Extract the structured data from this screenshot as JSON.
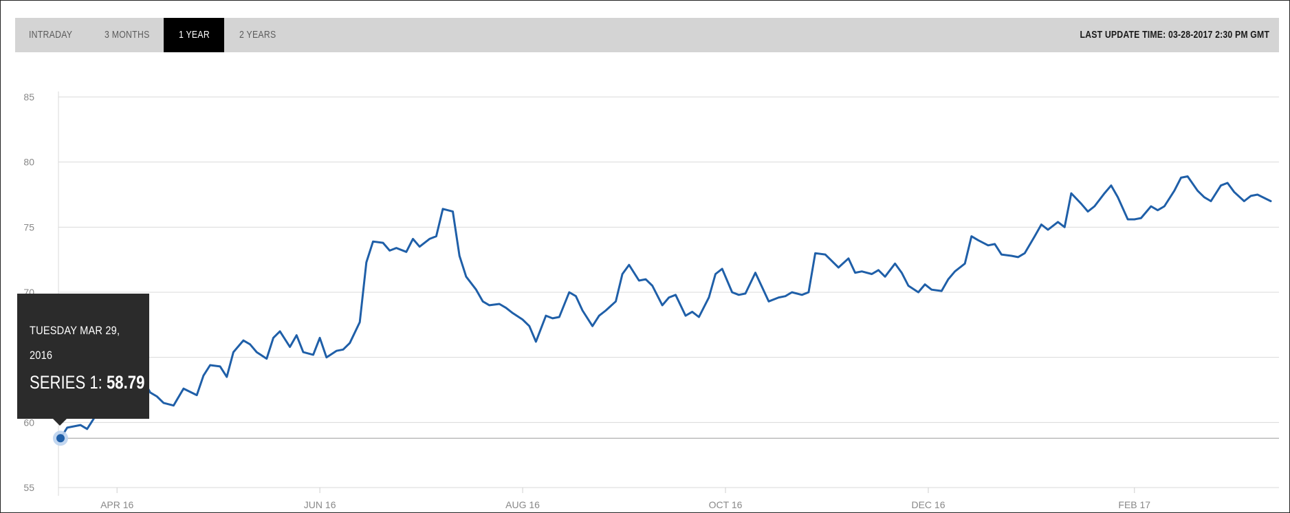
{
  "range_tabs": [
    {
      "label": "INTRADAY",
      "active": false
    },
    {
      "label": "3 MONTHS",
      "active": false
    },
    {
      "label": "1 YEAR",
      "active": true
    },
    {
      "label": "2 YEARS",
      "active": false
    }
  ],
  "last_update": "LAST UPDATE TIME: 03-28-2017 2:30 PM GMT",
  "tooltip": {
    "date_line1": "TUESDAY MAR 29,",
    "date_line2": "2016",
    "series_label": "SERIES 1:",
    "series_value": "58.79"
  },
  "colors": {
    "line": "#1f5fa8",
    "grid": "#d9d9d9",
    "tab_bar": "#d4d4d4",
    "tooltip_bg": "#2b2b2b",
    "marker_halo": "#bcd3ee"
  },
  "chart_data": {
    "type": "line",
    "title": "",
    "xlabel": "",
    "ylabel": "",
    "ylim": [
      55,
      85
    ],
    "y_ticks": [
      55,
      60,
      65,
      70,
      75,
      80,
      85
    ],
    "y_tick_labels": [
      "55",
      "60",
      "",
      "70",
      "75",
      "80",
      "85"
    ],
    "x_tick_labels": [
      "APR 16",
      "JUN 16",
      "AUG 16",
      "OCT 16",
      "DEC 16",
      "FEB 17"
    ],
    "x_tick_dates": [
      "2016-04-15",
      "2016-06-15",
      "2016-08-15",
      "2016-10-15",
      "2016-12-15",
      "2017-02-15"
    ],
    "x_range": [
      "2016-03-29",
      "2017-03-28"
    ],
    "grid": true,
    "highlighted_point": {
      "x": "2016-03-29",
      "y": 58.79
    },
    "series": [
      {
        "name": "Series 1",
        "points": [
          [
            "2016-03-29",
            58.79
          ],
          [
            "2016-03-31",
            59.6
          ],
          [
            "2016-04-04",
            59.8
          ],
          [
            "2016-04-06",
            59.5
          ],
          [
            "2016-04-08",
            60.3
          ],
          [
            "2016-04-11",
            62.2
          ],
          [
            "2016-04-13",
            63.8
          ],
          [
            "2016-04-15",
            63.2
          ],
          [
            "2016-04-18",
            63.5
          ],
          [
            "2016-04-20",
            62.8
          ],
          [
            "2016-04-22",
            63.7
          ],
          [
            "2016-04-25",
            62.3
          ],
          [
            "2016-04-27",
            62.0
          ],
          [
            "2016-04-29",
            61.5
          ],
          [
            "2016-05-02",
            61.3
          ],
          [
            "2016-05-05",
            62.6
          ],
          [
            "2016-05-09",
            62.1
          ],
          [
            "2016-05-11",
            63.6
          ],
          [
            "2016-05-13",
            64.4
          ],
          [
            "2016-05-16",
            64.3
          ],
          [
            "2016-05-18",
            63.5
          ],
          [
            "2016-05-20",
            65.4
          ],
          [
            "2016-05-23",
            66.3
          ],
          [
            "2016-05-25",
            66.0
          ],
          [
            "2016-05-27",
            65.4
          ],
          [
            "2016-05-30",
            64.9
          ],
          [
            "2016-06-01",
            66.5
          ],
          [
            "2016-06-03",
            67.0
          ],
          [
            "2016-06-06",
            65.8
          ],
          [
            "2016-06-08",
            66.7
          ],
          [
            "2016-06-10",
            65.4
          ],
          [
            "2016-06-13",
            65.2
          ],
          [
            "2016-06-15",
            66.5
          ],
          [
            "2016-06-17",
            65.0
          ],
          [
            "2016-06-20",
            65.5
          ],
          [
            "2016-06-22",
            65.6
          ],
          [
            "2016-06-24",
            66.1
          ],
          [
            "2016-06-27",
            67.7
          ],
          [
            "2016-06-29",
            72.3
          ],
          [
            "2016-07-01",
            73.9
          ],
          [
            "2016-07-04",
            73.8
          ],
          [
            "2016-07-06",
            73.2
          ],
          [
            "2016-07-08",
            73.4
          ],
          [
            "2016-07-11",
            73.1
          ],
          [
            "2016-07-13",
            74.1
          ],
          [
            "2016-07-15",
            73.5
          ],
          [
            "2016-07-18",
            74.1
          ],
          [
            "2016-07-20",
            74.3
          ],
          [
            "2016-07-22",
            76.4
          ],
          [
            "2016-07-25",
            76.2
          ],
          [
            "2016-07-27",
            72.8
          ],
          [
            "2016-07-29",
            71.2
          ],
          [
            "2016-08-01",
            70.2
          ],
          [
            "2016-08-03",
            69.3
          ],
          [
            "2016-08-05",
            69.0
          ],
          [
            "2016-08-08",
            69.1
          ],
          [
            "2016-08-10",
            68.8
          ],
          [
            "2016-08-12",
            68.4
          ],
          [
            "2016-08-15",
            67.9
          ],
          [
            "2016-08-17",
            67.4
          ],
          [
            "2016-08-19",
            66.2
          ],
          [
            "2016-08-22",
            68.2
          ],
          [
            "2016-08-24",
            68.0
          ],
          [
            "2016-08-26",
            68.1
          ],
          [
            "2016-08-29",
            70.0
          ],
          [
            "2016-08-31",
            69.7
          ],
          [
            "2016-09-02",
            68.6
          ],
          [
            "2016-09-05",
            67.4
          ],
          [
            "2016-09-07",
            68.2
          ],
          [
            "2016-09-09",
            68.6
          ],
          [
            "2016-09-12",
            69.3
          ],
          [
            "2016-09-14",
            71.4
          ],
          [
            "2016-09-16",
            72.1
          ],
          [
            "2016-09-19",
            70.9
          ],
          [
            "2016-09-21",
            71.0
          ],
          [
            "2016-09-23",
            70.5
          ],
          [
            "2016-09-26",
            69.0
          ],
          [
            "2016-09-28",
            69.6
          ],
          [
            "2016-09-30",
            69.8
          ],
          [
            "2016-10-03",
            68.2
          ],
          [
            "2016-10-05",
            68.5
          ],
          [
            "2016-10-07",
            68.1
          ],
          [
            "2016-10-10",
            69.6
          ],
          [
            "2016-10-12",
            71.4
          ],
          [
            "2016-10-14",
            71.8
          ],
          [
            "2016-10-17",
            70.0
          ],
          [
            "2016-10-19",
            69.8
          ],
          [
            "2016-10-21",
            69.9
          ],
          [
            "2016-10-24",
            71.5
          ],
          [
            "2016-10-26",
            70.4
          ],
          [
            "2016-10-28",
            69.3
          ],
          [
            "2016-10-31",
            69.6
          ],
          [
            "2016-11-02",
            69.7
          ],
          [
            "2016-11-04",
            70.0
          ],
          [
            "2016-11-07",
            69.8
          ],
          [
            "2016-11-09",
            70.0
          ],
          [
            "2016-11-11",
            73.0
          ],
          [
            "2016-11-14",
            72.9
          ],
          [
            "2016-11-16",
            72.4
          ],
          [
            "2016-11-18",
            71.9
          ],
          [
            "2016-11-21",
            72.6
          ],
          [
            "2016-11-23",
            71.5
          ],
          [
            "2016-11-25",
            71.6
          ],
          [
            "2016-11-28",
            71.4
          ],
          [
            "2016-11-30",
            71.7
          ],
          [
            "2016-12-02",
            71.2
          ],
          [
            "2016-12-05",
            72.2
          ],
          [
            "2016-12-07",
            71.5
          ],
          [
            "2016-12-09",
            70.5
          ],
          [
            "2016-12-12",
            70.0
          ],
          [
            "2016-12-14",
            70.6
          ],
          [
            "2016-12-16",
            70.2
          ],
          [
            "2016-12-19",
            70.1
          ],
          [
            "2016-12-21",
            71.0
          ],
          [
            "2016-12-23",
            71.6
          ],
          [
            "2016-12-26",
            72.2
          ],
          [
            "2016-12-28",
            74.3
          ],
          [
            "2016-12-30",
            74.0
          ],
          [
            "2017-01-02",
            73.6
          ],
          [
            "2017-01-04",
            73.7
          ],
          [
            "2017-01-06",
            72.9
          ],
          [
            "2017-01-09",
            72.8
          ],
          [
            "2017-01-11",
            72.7
          ],
          [
            "2017-01-13",
            73.0
          ],
          [
            "2017-01-16",
            74.3
          ],
          [
            "2017-01-18",
            75.2
          ],
          [
            "2017-01-20",
            74.8
          ],
          [
            "2017-01-23",
            75.4
          ],
          [
            "2017-01-25",
            75.0
          ],
          [
            "2017-01-27",
            77.6
          ],
          [
            "2017-01-30",
            76.8
          ],
          [
            "2017-02-01",
            76.2
          ],
          [
            "2017-02-03",
            76.6
          ],
          [
            "2017-02-06",
            77.6
          ],
          [
            "2017-02-08",
            78.2
          ],
          [
            "2017-02-10",
            77.3
          ],
          [
            "2017-02-13",
            75.6
          ],
          [
            "2017-02-15",
            75.6
          ],
          [
            "2017-02-17",
            75.7
          ],
          [
            "2017-02-20",
            76.6
          ],
          [
            "2017-02-22",
            76.3
          ],
          [
            "2017-02-24",
            76.6
          ],
          [
            "2017-02-27",
            77.8
          ],
          [
            "2017-03-01",
            78.8
          ],
          [
            "2017-03-03",
            78.9
          ],
          [
            "2017-03-06",
            77.8
          ],
          [
            "2017-03-08",
            77.3
          ],
          [
            "2017-03-10",
            77.0
          ],
          [
            "2017-03-13",
            78.2
          ],
          [
            "2017-03-15",
            78.4
          ],
          [
            "2017-03-17",
            77.7
          ],
          [
            "2017-03-20",
            77.0
          ],
          [
            "2017-03-22",
            77.4
          ],
          [
            "2017-03-24",
            77.5
          ],
          [
            "2017-03-28",
            77.0
          ]
        ]
      }
    ]
  }
}
